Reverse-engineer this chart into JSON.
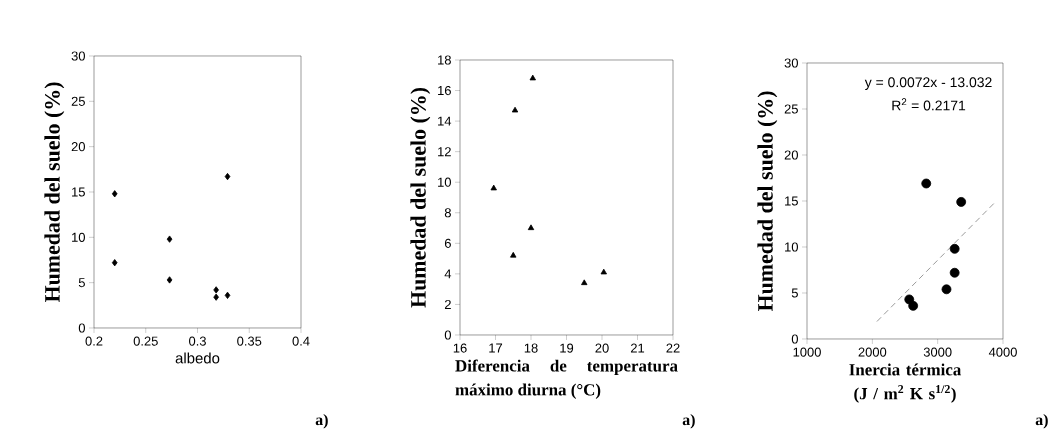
{
  "chart_data": [
    {
      "type": "scatter",
      "xlabel": "albedo",
      "ylabel": "Humedad del suelo (%)",
      "marker": "diamond",
      "color": "#000000",
      "x": [
        0.22,
        0.22,
        0.273,
        0.273,
        0.318,
        0.318,
        0.329,
        0.329
      ],
      "values": [
        14.8,
        7.2,
        9.8,
        5.3,
        4.2,
        3.4,
        3.6,
        16.7
      ],
      "xlim": [
        0.2,
        0.4
      ],
      "ylim": [
        0,
        30
      ],
      "xticks": [
        0.2,
        0.25,
        0.3,
        0.35,
        0.4
      ],
      "yticks": [
        0,
        5,
        10,
        15,
        20,
        25,
        30
      ],
      "annotations": [
        "a)"
      ]
    },
    {
      "type": "scatter",
      "xlabel": "Diferencia de temperatura máximo diurna (°C)",
      "ylabel": "Humedad del suelo (%)",
      "marker": "triangle",
      "color": "#000000",
      "x": [
        16.95,
        17.55,
        18.05,
        18.0,
        17.5,
        19.5,
        20.05
      ],
      "values": [
        9.6,
        14.7,
        16.8,
        7.0,
        5.2,
        3.4,
        4.1
      ],
      "xlim": [
        16,
        22
      ],
      "ylim": [
        0,
        18
      ],
      "xticks": [
        16,
        17,
        18,
        19,
        20,
        21,
        22
      ],
      "yticks": [
        0,
        2,
        4,
        6,
        8,
        10,
        12,
        14,
        16,
        18
      ],
      "annotations": [
        "a)"
      ]
    },
    {
      "type": "scatter",
      "xlabel": "Inercia térmica (J / m$^{2}$ K s$^{1/2}$)",
      "ylabel": "Humedad del suelo (%)",
      "series": [
        {
          "type": "scatter",
          "marker": "circle",
          "color": "#000000",
          "x": [
            2825,
            3360,
            3260,
            3260,
            3135,
            2565,
            2625
          ],
          "values": [
            16.9,
            14.9,
            9.8,
            7.2,
            5.4,
            4.3,
            3.6
          ]
        },
        {
          "type": "line",
          "color": "#808080",
          "line_style": "dashed",
          "x": [
            2070,
            3870
          ],
          "values": [
            1.9,
            14.8
          ]
        }
      ],
      "xlim": [
        1000,
        4000
      ],
      "ylim": [
        0,
        30
      ],
      "xticks": [
        1000,
        2000,
        3000,
        4000
      ],
      "yticks": [
        0,
        5,
        10,
        15,
        20,
        25,
        30
      ],
      "annotations": [
        "y = 0.0072x - 13.032",
        "R$^{2}$ = 0.2171",
        "a)"
      ]
    }
  ]
}
